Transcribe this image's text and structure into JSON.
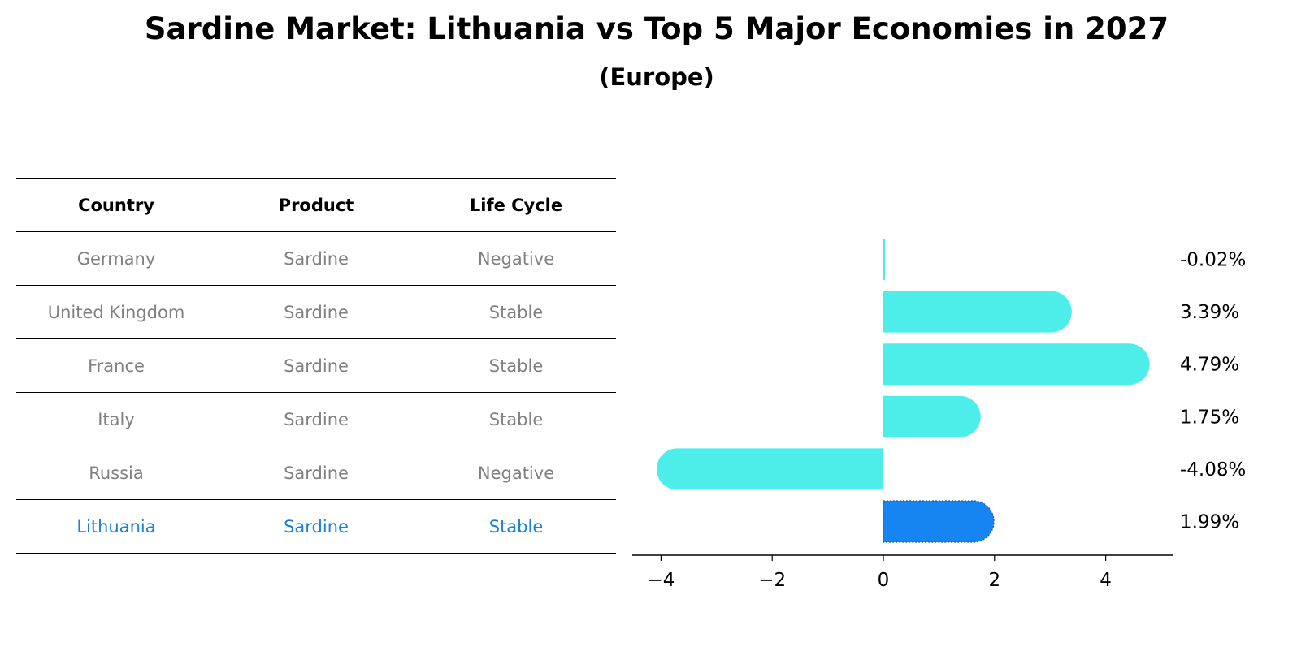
{
  "title": "Sardine Market: Lithuania vs Top 5 Major Economies in 2027",
  "subtitle": "(Europe)",
  "table": {
    "headers": [
      "Country",
      "Product",
      "Life Cycle"
    ],
    "rows": [
      [
        "Germany",
        "Sardine",
        "Negative"
      ],
      [
        "United Kingdom",
        "Sardine",
        "Stable"
      ],
      [
        "France",
        "Sardine",
        "Stable"
      ],
      [
        "Italy",
        "Sardine",
        "Stable"
      ],
      [
        "Russia",
        "Sardine",
        "Negative"
      ],
      [
        "Lithuania",
        "Sardine",
        "Stable"
      ]
    ],
    "highlight_row": 5
  },
  "colors": {
    "bar": "#4deeea",
    "highlight": "#1685f2",
    "highlight_text": "#1a80d9",
    "muted_text": "#808080"
  },
  "chart_data": {
    "type": "bar",
    "orientation": "horizontal",
    "categories": [
      "Germany",
      "United Kingdom",
      "France",
      "Italy",
      "Russia",
      "Lithuania"
    ],
    "values": [
      -0.02,
      3.39,
      4.79,
      1.75,
      -4.08,
      1.99
    ],
    "labels": [
      "-0.02%",
      "3.39%",
      "4.79%",
      "1.75%",
      "-4.08%",
      "1.99%"
    ],
    "highlight_index": 5,
    "xlim": [
      -4.5,
      5.3
    ],
    "xticks": [
      -4,
      -2,
      0,
      2,
      4
    ],
    "xtick_labels": [
      "−4",
      "−2",
      "0",
      "2",
      "4"
    ],
    "xlabel": "",
    "ylabel": ""
  }
}
